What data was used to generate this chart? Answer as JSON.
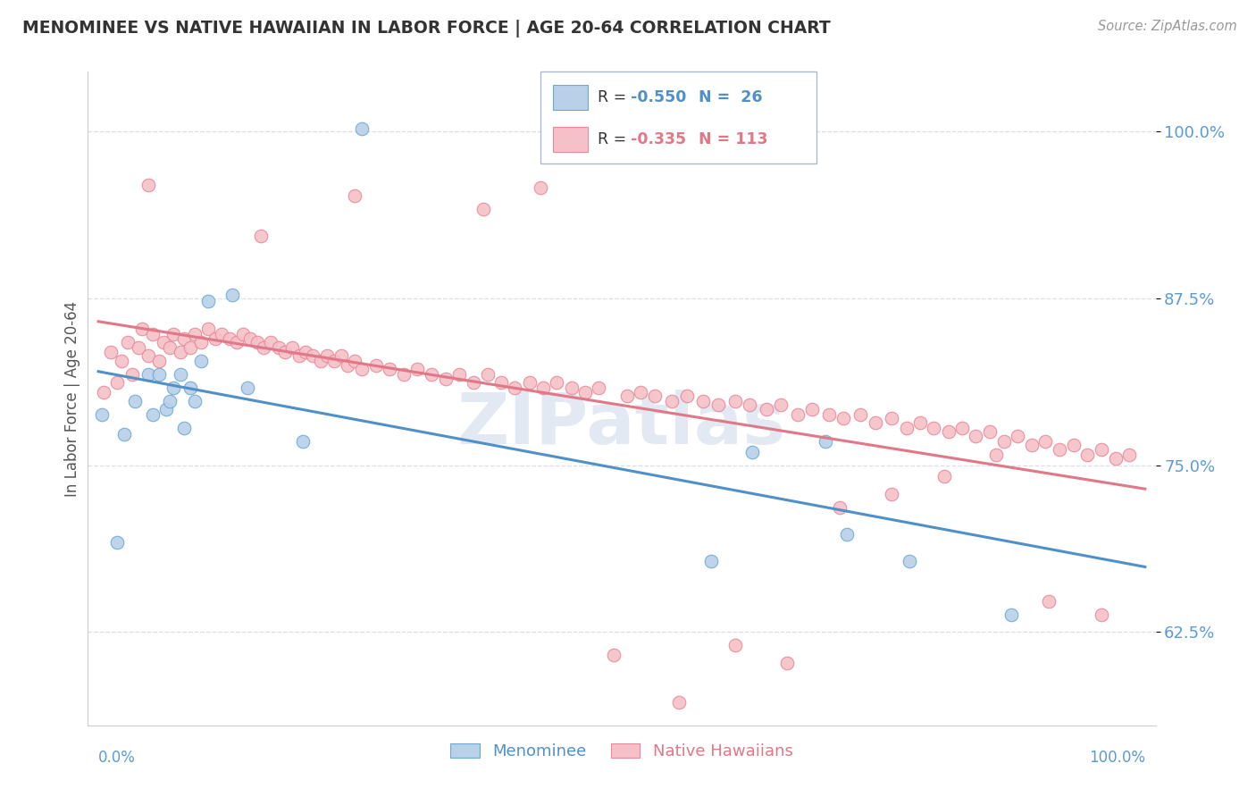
{
  "title": "MENOMINEE VS NATIVE HAWAIIAN IN LABOR FORCE | AGE 20-64 CORRELATION CHART",
  "source": "Source: ZipAtlas.com",
  "ylabel": "In Labor Force | Age 20-64",
  "ytick_vals": [
    0.625,
    0.75,
    0.875,
    1.0
  ],
  "ytick_labels": [
    "62.5%",
    "75.0%",
    "87.5%",
    "100.0%"
  ],
  "xlim": [
    0.0,
    1.0
  ],
  "ylim": [
    0.555,
    1.045
  ],
  "menominee_fill": "#b8d0e8",
  "native_hawaiian_fill": "#f5c0c8",
  "menominee_edge": "#6aaad4",
  "native_hawaiian_edge": "#e88898",
  "menominee_line": "#5090c8",
  "native_hawaiian_line": "#e07888",
  "grid_color": "#d8dfe8",
  "title_color": "#333333",
  "axis_label_color": "#5b9bd5",
  "watermark_color": "#ccd8e8",
  "menominee_x": [
    0.003,
    0.018,
    0.025,
    0.035,
    0.048,
    0.052,
    0.058,
    0.065,
    0.068,
    0.072,
    0.078,
    0.082,
    0.088,
    0.092,
    0.098,
    0.105,
    0.128,
    0.142,
    0.195,
    0.252,
    0.585,
    0.625,
    0.695,
    0.715,
    0.775,
    0.872
  ],
  "menominee_y": [
    0.788,
    0.692,
    0.773,
    0.798,
    0.818,
    0.788,
    0.818,
    0.792,
    0.798,
    0.808,
    0.818,
    0.778,
    0.808,
    0.798,
    0.828,
    0.873,
    0.878,
    0.808,
    0.768,
    1.002,
    0.678,
    0.76,
    0.768,
    0.698,
    0.678,
    0.638
  ],
  "native_hawaiian_x": [
    0.005,
    0.012,
    0.018,
    0.022,
    0.028,
    0.032,
    0.038,
    0.042,
    0.048,
    0.052,
    0.058,
    0.062,
    0.068,
    0.072,
    0.078,
    0.082,
    0.088,
    0.092,
    0.098,
    0.105,
    0.112,
    0.118,
    0.125,
    0.132,
    0.138,
    0.145,
    0.152,
    0.158,
    0.165,
    0.172,
    0.178,
    0.185,
    0.192,
    0.198,
    0.205,
    0.212,
    0.218,
    0.225,
    0.232,
    0.238,
    0.245,
    0.252,
    0.265,
    0.278,
    0.292,
    0.305,
    0.318,
    0.332,
    0.345,
    0.358,
    0.372,
    0.385,
    0.398,
    0.412,
    0.425,
    0.438,
    0.452,
    0.465,
    0.478,
    0.505,
    0.518,
    0.532,
    0.548,
    0.562,
    0.578,
    0.592,
    0.608,
    0.622,
    0.638,
    0.652,
    0.668,
    0.682,
    0.698,
    0.712,
    0.728,
    0.742,
    0.758,
    0.772,
    0.785,
    0.798,
    0.812,
    0.825,
    0.838,
    0.852,
    0.865,
    0.878,
    0.892,
    0.905,
    0.918,
    0.932,
    0.945,
    0.958,
    0.972,
    0.985,
    0.048,
    0.155,
    0.245,
    0.368,
    0.422,
    0.492,
    0.555,
    0.608,
    0.658,
    0.708,
    0.758,
    0.808,
    0.858,
    0.908,
    0.958
  ],
  "native_hawaiian_y": [
    0.805,
    0.835,
    0.812,
    0.828,
    0.842,
    0.818,
    0.838,
    0.852,
    0.832,
    0.848,
    0.828,
    0.842,
    0.838,
    0.848,
    0.835,
    0.845,
    0.838,
    0.848,
    0.842,
    0.852,
    0.845,
    0.848,
    0.845,
    0.842,
    0.848,
    0.845,
    0.842,
    0.838,
    0.842,
    0.838,
    0.835,
    0.838,
    0.832,
    0.835,
    0.832,
    0.828,
    0.832,
    0.828,
    0.832,
    0.825,
    0.828,
    0.822,
    0.825,
    0.822,
    0.818,
    0.822,
    0.818,
    0.815,
    0.818,
    0.812,
    0.818,
    0.812,
    0.808,
    0.812,
    0.808,
    0.812,
    0.808,
    0.805,
    0.808,
    0.802,
    0.805,
    0.802,
    0.798,
    0.802,
    0.798,
    0.795,
    0.798,
    0.795,
    0.792,
    0.795,
    0.788,
    0.792,
    0.788,
    0.785,
    0.788,
    0.782,
    0.785,
    0.778,
    0.782,
    0.778,
    0.775,
    0.778,
    0.772,
    0.775,
    0.768,
    0.772,
    0.765,
    0.768,
    0.762,
    0.765,
    0.758,
    0.762,
    0.755,
    0.758,
    0.96,
    0.922,
    0.952,
    0.942,
    0.958,
    0.608,
    0.572,
    0.615,
    0.602,
    0.718,
    0.728,
    0.742,
    0.758,
    0.648,
    0.638
  ],
  "background_color": "#ffffff"
}
